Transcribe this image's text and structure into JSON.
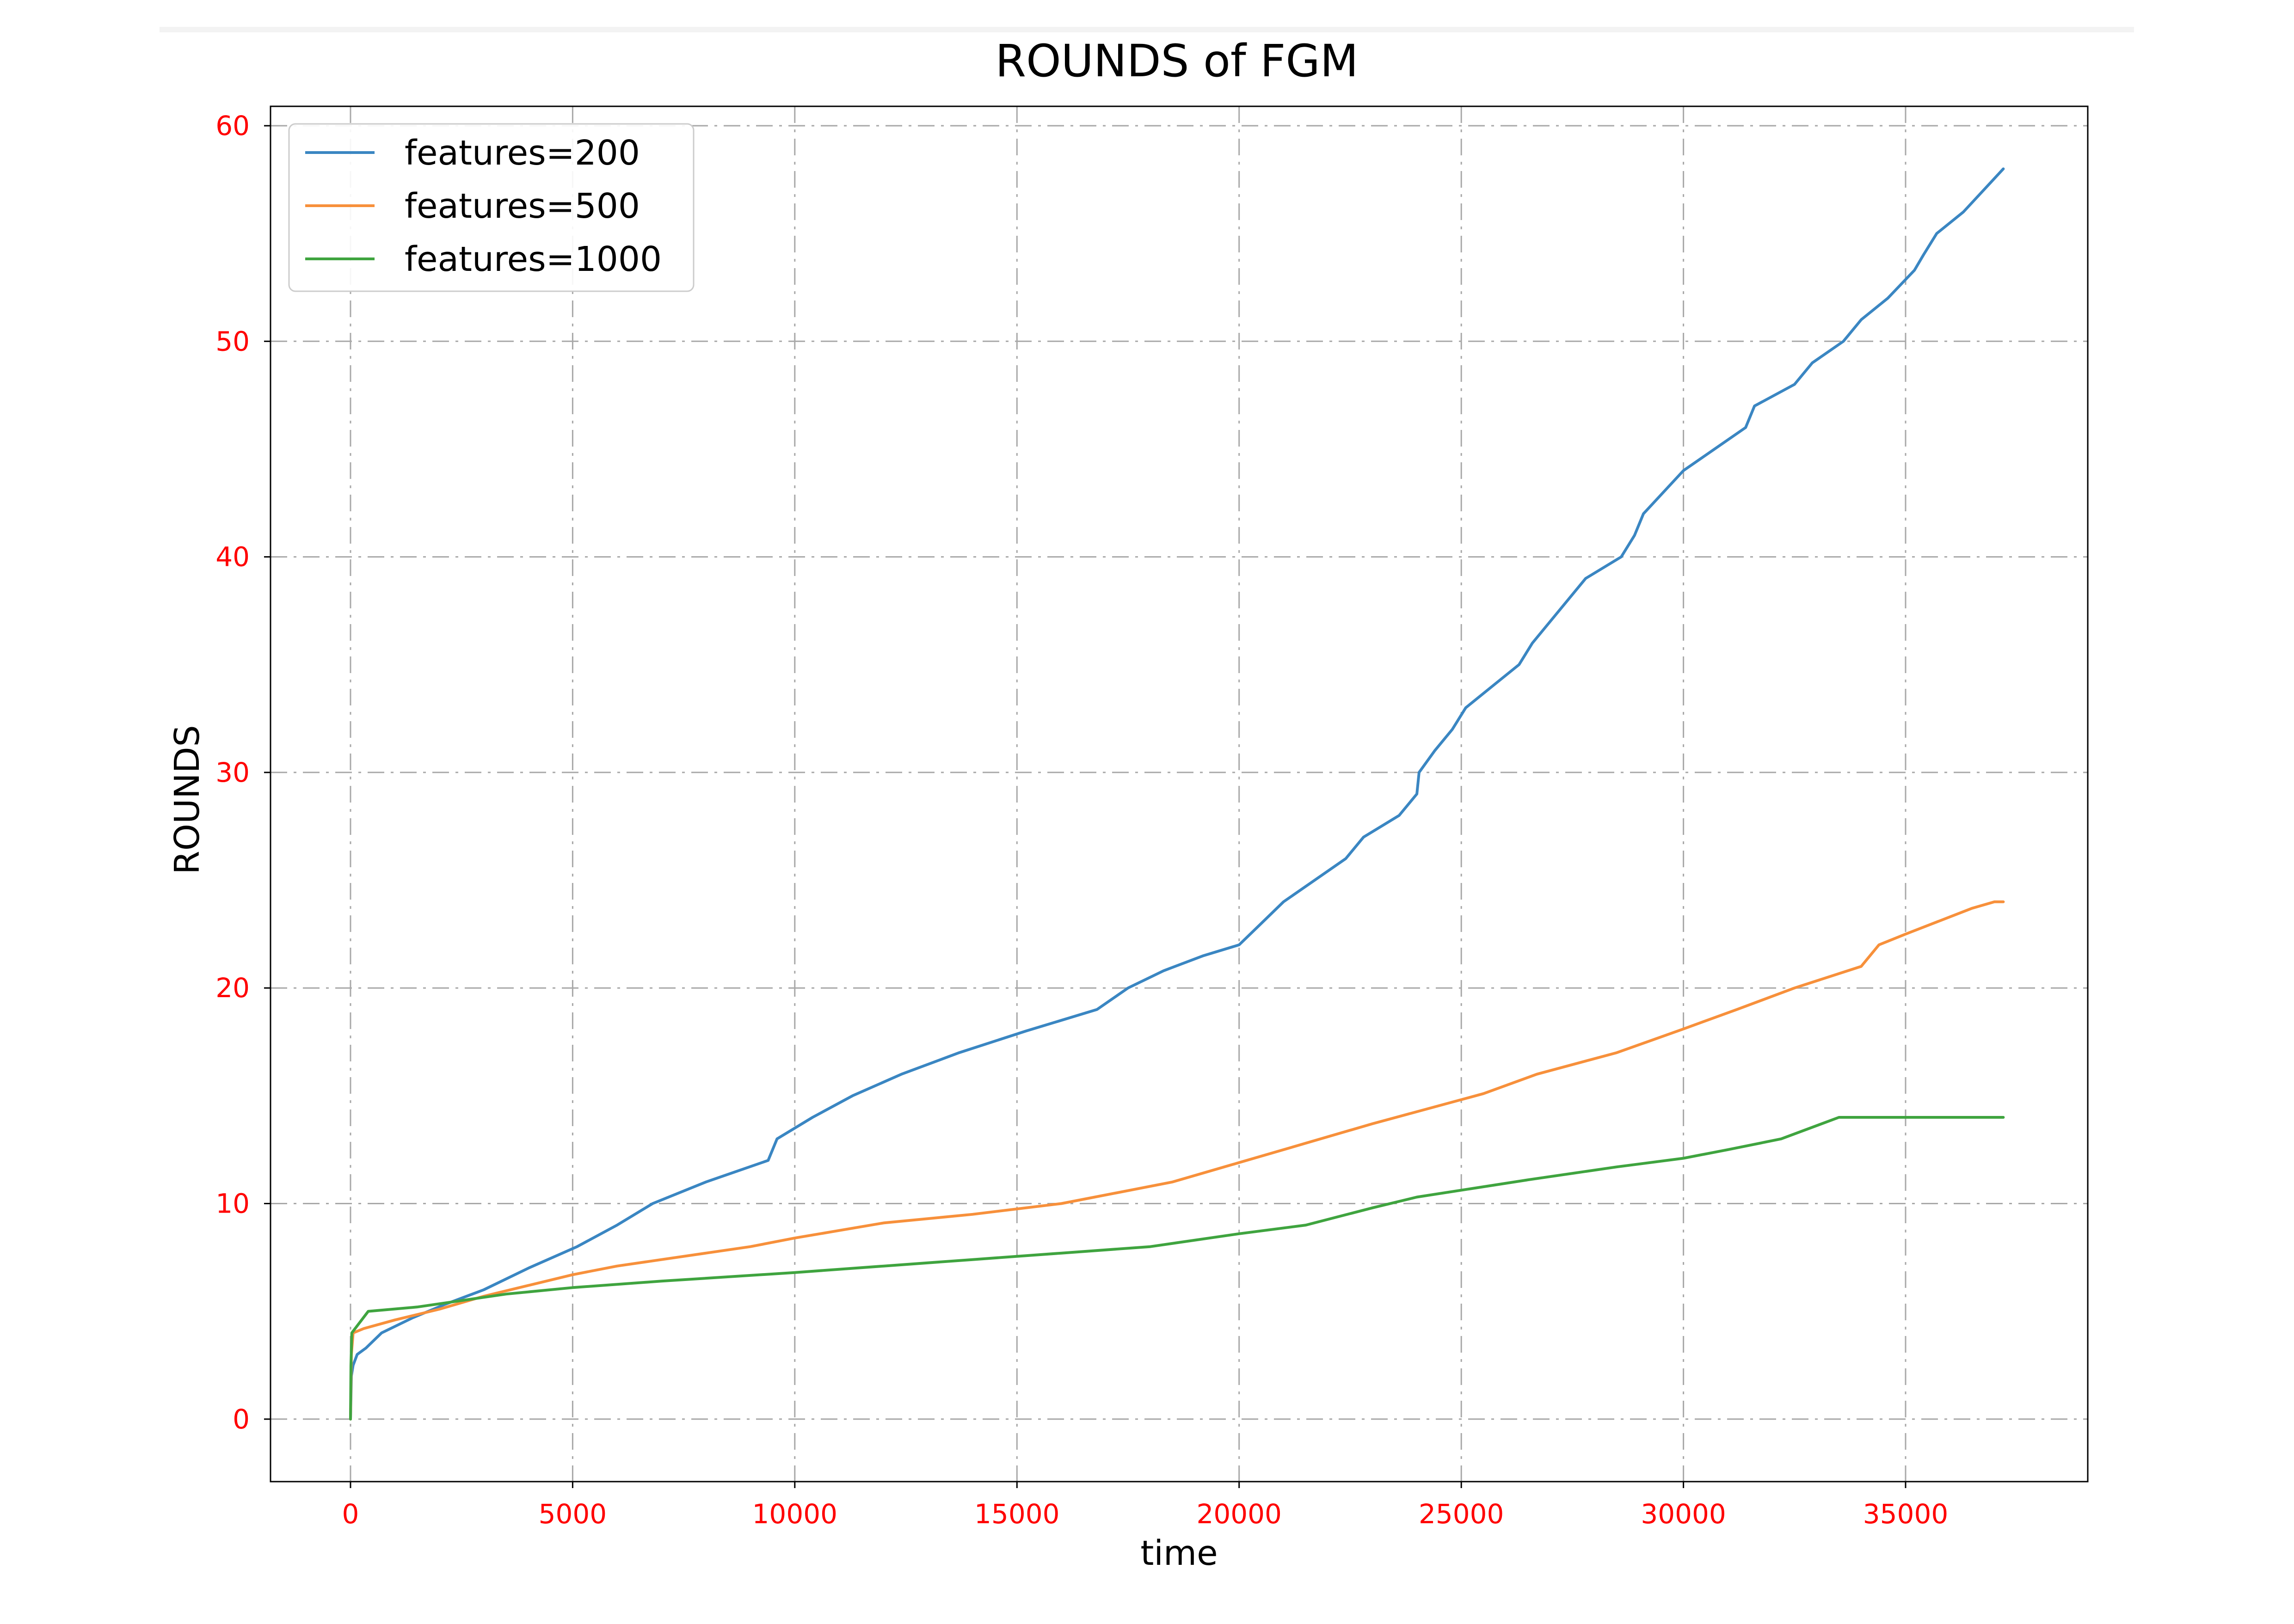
{
  "chart_data": {
    "type": "line",
    "title": "ROUNDS of FGM",
    "xlabel": "time",
    "ylabel": "ROUNDS",
    "xlim": [
      -1800,
      39100
    ],
    "ylim": [
      -2.9,
      60.9
    ],
    "xticks": [
      0,
      5000,
      10000,
      15000,
      20000,
      25000,
      30000,
      35000
    ],
    "yticks": [
      0,
      10,
      20,
      30,
      40,
      50,
      60
    ],
    "tick_label_color": "#ff0000",
    "grid": true,
    "grid_style": "dash-dot",
    "legend_position": "upper-left",
    "series": [
      {
        "name": "features=200",
        "color": "#3a86c2",
        "x": [
          0,
          20,
          60,
          150,
          350,
          700,
          1400,
          2100,
          3000,
          4000,
          5100,
          6000,
          6800,
          8000,
          9400,
          9600,
          10400,
          11300,
          12400,
          13700,
          15200,
          16800,
          17500,
          18300,
          19200,
          20000,
          20500,
          21000,
          22400,
          22800,
          23600,
          24000,
          24050,
          24400,
          24800,
          25100,
          25700,
          26300,
          26600,
          27000,
          27800,
          28600,
          28900,
          29100,
          30000,
          30700,
          31400,
          31600,
          32500,
          32900,
          33600,
          34000,
          34600,
          35200,
          35400,
          35700,
          36300,
          37200
        ],
        "y": [
          0,
          2,
          2.5,
          3,
          3.3,
          4,
          4.7,
          5.3,
          6,
          7,
          8,
          9,
          10,
          11,
          12,
          13,
          14,
          15,
          16,
          17,
          18,
          19,
          20,
          20.8,
          21.5,
          22,
          23,
          24,
          26,
          27,
          28,
          29,
          30,
          31,
          32,
          33,
          34,
          35,
          36,
          37,
          39,
          40,
          41,
          42,
          44,
          45,
          46,
          47,
          48,
          49,
          50,
          51,
          52,
          53.3,
          54,
          55,
          56,
          58
        ]
      },
      {
        "name": "features=500",
        "color": "#f7903b",
        "x": [
          0,
          20,
          60,
          300,
          1000,
          2000,
          3000,
          4000,
          5000,
          6000,
          7000,
          8000,
          9000,
          10000,
          12000,
          14000,
          16000,
          18500,
          20000,
          21500,
          23000,
          25500,
          26700,
          28500,
          30000,
          31200,
          32500,
          34000,
          34400,
          35000,
          36500,
          37000,
          37200
        ],
        "y": [
          0,
          3,
          4,
          4.2,
          4.6,
          5.1,
          5.7,
          6.2,
          6.7,
          7.1,
          7.4,
          7.7,
          8,
          8.4,
          9.1,
          9.5,
          10,
          11,
          11.9,
          12.8,
          13.7,
          15.1,
          16,
          17,
          18.1,
          19,
          20,
          21,
          22,
          22.5,
          23.7,
          24,
          24
        ]
      },
      {
        "name": "features=1000",
        "color": "#3fa43f",
        "x": [
          0,
          10,
          30,
          400,
          1500,
          2500,
          3500,
          5000,
          7000,
          10000,
          12000,
          14000,
          16000,
          18000,
          20000,
          21500,
          23000,
          24000,
          26500,
          28500,
          30000,
          31000,
          32200,
          33500,
          34000,
          35000,
          36000,
          37200
        ],
        "y": [
          0,
          2.5,
          4,
          5,
          5.2,
          5.5,
          5.8,
          6.1,
          6.4,
          6.8,
          7.1,
          7.4,
          7.7,
          8,
          8.6,
          9,
          9.8,
          10.3,
          11.1,
          11.7,
          12.1,
          12.5,
          13,
          14,
          14,
          14,
          14,
          14
        ]
      }
    ]
  }
}
